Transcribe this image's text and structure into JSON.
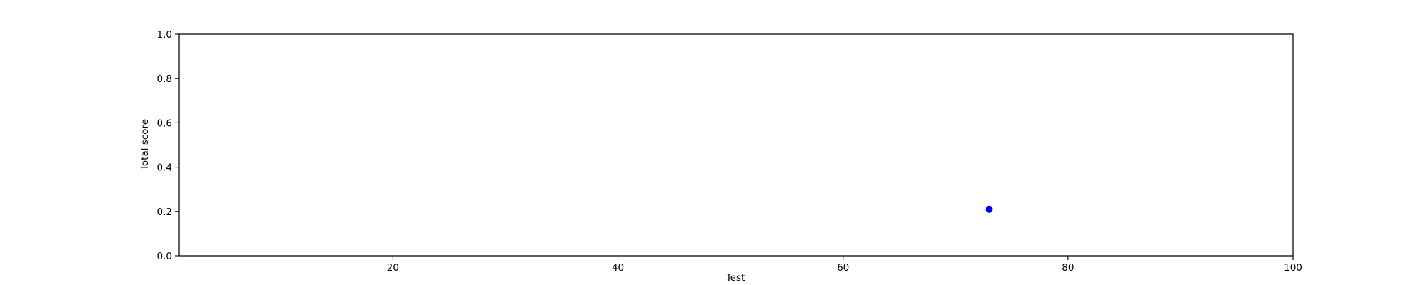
{
  "chart_data": {
    "type": "scatter",
    "title": "",
    "xlabel": "Test",
    "ylabel": "Total score",
    "xlim": [
      1,
      100
    ],
    "ylim": [
      0.0,
      1.0
    ],
    "x_ticks": [
      20,
      40,
      60,
      80,
      100
    ],
    "x_tick_labels": [
      "20",
      "40",
      "60",
      "80",
      "100"
    ],
    "y_ticks": [
      0.0,
      0.2,
      0.4,
      0.6,
      0.8,
      1.0
    ],
    "y_tick_labels": [
      "0.0",
      "0.2",
      "0.4",
      "0.6",
      "0.8",
      "1.0"
    ],
    "grid": false,
    "series": [
      {
        "color": "#0000ff",
        "points": [
          {
            "x": 73,
            "y": 0.21
          }
        ]
      }
    ]
  }
}
